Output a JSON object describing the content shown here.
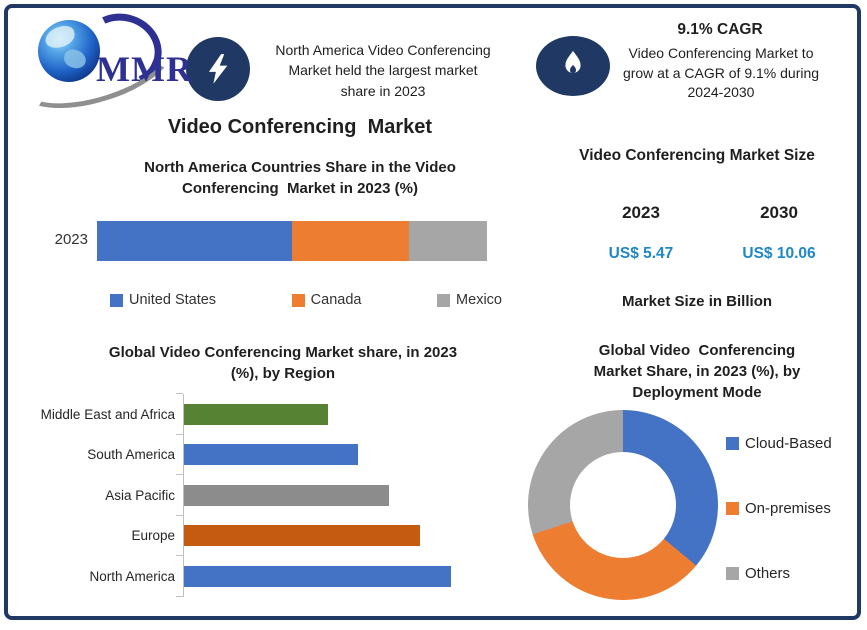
{
  "logo": {
    "text": "MMR"
  },
  "top_banners": {
    "highlight": {
      "icon": "lightning-bolt",
      "text": "North America Video Conferencing\nMarket held the largest market\nshare in 2023"
    },
    "cagr": {
      "icon": "flame",
      "title": "9.1% CAGR",
      "text": "Video Conferencing Market to\ngrow at a CAGR of 9.1% during\n2024-2030"
    }
  },
  "left_column": {
    "main_title": "Video Conferencing  Market"
  },
  "right_column": {
    "market_size": {
      "title": "Video Conferencing Market Size",
      "periods": [
        {
          "year": "2023",
          "value": "US$ 5.47"
        },
        {
          "year": "2030",
          "value": "US$ 10.06"
        }
      ],
      "note": "Market Size in Billion"
    }
  },
  "chart_data": [
    {
      "id": "na-countries-share",
      "type": "bar",
      "orientation": "horizontal-stacked",
      "title": "North America Countries Share in the Video\nConferencing  Market in 2023 (%)",
      "categories": [
        "2023"
      ],
      "series": [
        {
          "name": "United States",
          "values": [
            50
          ],
          "color": "#4472C4"
        },
        {
          "name": "Canada",
          "values": [
            30
          ],
          "color": "#ED7D31"
        },
        {
          "name": "Mexico",
          "values": [
            20
          ],
          "color": "#A6A6A6"
        }
      ],
      "xlim": [
        0,
        100
      ],
      "legend_position": "bottom",
      "grid": false
    },
    {
      "id": "global-share-by-region",
      "type": "bar",
      "orientation": "horizontal",
      "title": "Global Video Conferencing Market share, in 2023\n(%), by Region",
      "categories": [
        "Middle East and Africa",
        "South America",
        "Asia Pacific",
        "Europe",
        "North America"
      ],
      "values": [
        14,
        17,
        20,
        23,
        26
      ],
      "colors": [
        "#568234",
        "#4472C4",
        "#8C8C8C",
        "#C55A11",
        "#4472C4"
      ],
      "xlim": [
        0,
        27.5
      ],
      "legend_position": "none",
      "grid": false
    },
    {
      "id": "share-by-deployment-mode",
      "type": "pie",
      "subtype": "donut",
      "title": "Global Video  Conferencing\nMarket Share, in 2023 (%), by\nDeployment Mode",
      "labels": [
        "Cloud-Based",
        "On-premises",
        "Others"
      ],
      "values": [
        36,
        34,
        30
      ],
      "colors": [
        "#4472C4",
        "#ED7D31",
        "#A6A6A6"
      ],
      "start_angle_deg": 0,
      "legend_position": "right"
    }
  ],
  "colors": {
    "frame": "#1F3864",
    "badge_background": "#1F3864",
    "value_text": "#1E87C5",
    "logo_text": "#2E3192"
  }
}
